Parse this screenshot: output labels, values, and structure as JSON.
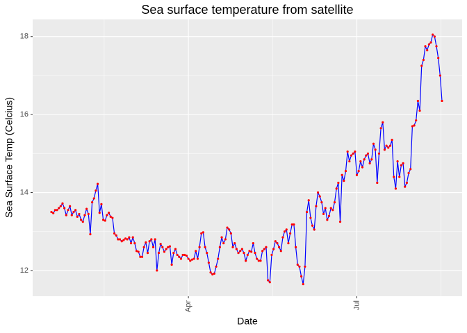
{
  "chart_data": {
    "type": "line",
    "title": "Sea surface temperature from satellite",
    "x_label": "Date",
    "y_label": "Sea Surface Temp (Celcius)",
    "categories": [
      null,
      null,
      null,
      null,
      null,
      null,
      null,
      null,
      null,
      null,
      null,
      null,
      null,
      null,
      null,
      null,
      null,
      null,
      null,
      null,
      null,
      null,
      null,
      null,
      null,
      null,
      null,
      null,
      null,
      null,
      null,
      null,
      null,
      null,
      null,
      null,
      null,
      null,
      null,
      null,
      null,
      null,
      null,
      null,
      null,
      null,
      null,
      null,
      null,
      null,
      null,
      null,
      null,
      null,
      null,
      null,
      null,
      null,
      null,
      null,
      null,
      null,
      null,
      null,
      null,
      null,
      null,
      null,
      null,
      null,
      null,
      null,
      null,
      null,
      "Apr",
      null,
      null,
      null,
      null,
      null,
      null,
      null,
      null,
      null,
      null,
      null,
      null,
      null,
      null,
      null,
      null,
      null,
      null,
      null,
      null,
      null,
      null,
      null,
      null,
      null,
      null,
      null,
      null,
      null,
      null,
      null,
      null,
      null,
      null,
      null,
      null,
      null,
      null,
      null,
      null,
      null,
      null,
      null,
      null,
      null,
      null,
      null,
      null,
      null,
      null,
      null,
      null,
      null,
      null,
      null,
      null,
      null,
      null,
      null,
      null,
      null,
      null,
      null,
      null,
      null,
      null,
      null,
      null,
      null,
      null,
      null,
      null,
      null,
      null,
      null,
      null,
      null,
      null,
      null,
      null,
      null,
      null,
      null,
      null,
      null,
      null,
      null,
      null,
      null,
      null,
      "Jul",
      null,
      null,
      null,
      null,
      null,
      null,
      null,
      null,
      null,
      null,
      null,
      null,
      null,
      null,
      null,
      null,
      null,
      null,
      null,
      null,
      null,
      null,
      null,
      null,
      null,
      null,
      null,
      null,
      null,
      null,
      null,
      null,
      null,
      null,
      null,
      null,
      null,
      null,
      null,
      null,
      null,
      null,
      null,
      null,
      null,
      null
    ],
    "values": [
      13.5,
      13.47,
      13.55,
      13.55,
      13.6,
      13.65,
      13.72,
      13.6,
      13.42,
      13.55,
      13.65,
      13.42,
      13.5,
      13.55,
      13.38,
      13.45,
      13.3,
      13.25,
      13.42,
      13.58,
      13.45,
      12.93,
      13.75,
      13.85,
      14.05,
      14.22,
      13.48,
      13.7,
      13.3,
      13.28,
      13.42,
      13.48,
      13.38,
      13.35,
      12.95,
      12.9,
      12.8,
      12.8,
      12.75,
      12.78,
      12.82,
      12.8,
      12.85,
      12.7,
      12.85,
      12.7,
      12.5,
      12.48,
      12.35,
      12.35,
      12.6,
      12.72,
      12.45,
      12.75,
      12.8,
      12.6,
      12.8,
      12.0,
      12.45,
      12.68,
      12.6,
      12.48,
      12.55,
      12.6,
      12.62,
      12.15,
      12.45,
      12.55,
      12.4,
      12.35,
      12.3,
      12.4,
      12.4,
      12.38,
      12.3,
      12.25,
      12.28,
      12.3,
      12.5,
      12.3,
      12.6,
      12.95,
      12.98,
      12.6,
      12.45,
      12.2,
      11.95,
      11.9,
      11.92,
      12.1,
      12.3,
      12.6,
      12.85,
      12.7,
      12.8,
      13.1,
      13.05,
      12.95,
      12.6,
      12.7,
      12.55,
      12.45,
      12.5,
      12.55,
      12.45,
      12.25,
      12.4,
      12.5,
      12.48,
      12.7,
      12.45,
      12.3,
      12.25,
      12.25,
      12.5,
      12.55,
      12.6,
      11.75,
      11.7,
      12.4,
      12.55,
      12.75,
      12.7,
      12.6,
      12.5,
      12.85,
      13.0,
      13.05,
      12.7,
      12.95,
      13.18,
      13.18,
      12.6,
      12.15,
      12.1,
      11.85,
      11.65,
      12.1,
      13.5,
      13.8,
      13.35,
      13.15,
      13.05,
      13.65,
      14.0,
      13.9,
      13.75,
      13.45,
      13.6,
      13.3,
      13.4,
      13.6,
      13.55,
      13.75,
      14.1,
      14.25,
      13.25,
      14.45,
      14.3,
      14.55,
      15.05,
      14.8,
      14.95,
      15.0,
      15.05,
      14.45,
      14.55,
      14.8,
      14.65,
      14.85,
      14.95,
      15.0,
      14.75,
      14.85,
      15.25,
      15.1,
      14.25,
      15.0,
      15.65,
      15.8,
      15.1,
      15.2,
      15.15,
      15.2,
      15.35,
      14.4,
      14.1,
      14.8,
      14.4,
      14.7,
      14.75,
      14.15,
      14.25,
      14.5,
      14.6,
      15.7,
      15.72,
      15.85,
      16.35,
      16.1,
      17.25,
      17.4,
      17.75,
      17.65,
      17.8,
      17.85,
      18.05,
      18.0,
      17.75,
      17.45,
      17.0,
      16.35
    ],
    "color": "#0000ff",
    "point_color": "#ff0000",
    "ylim": [
      11.34,
      18.44
    ],
    "yticks": [
      12,
      14,
      16,
      18
    ],
    "grid": true
  }
}
